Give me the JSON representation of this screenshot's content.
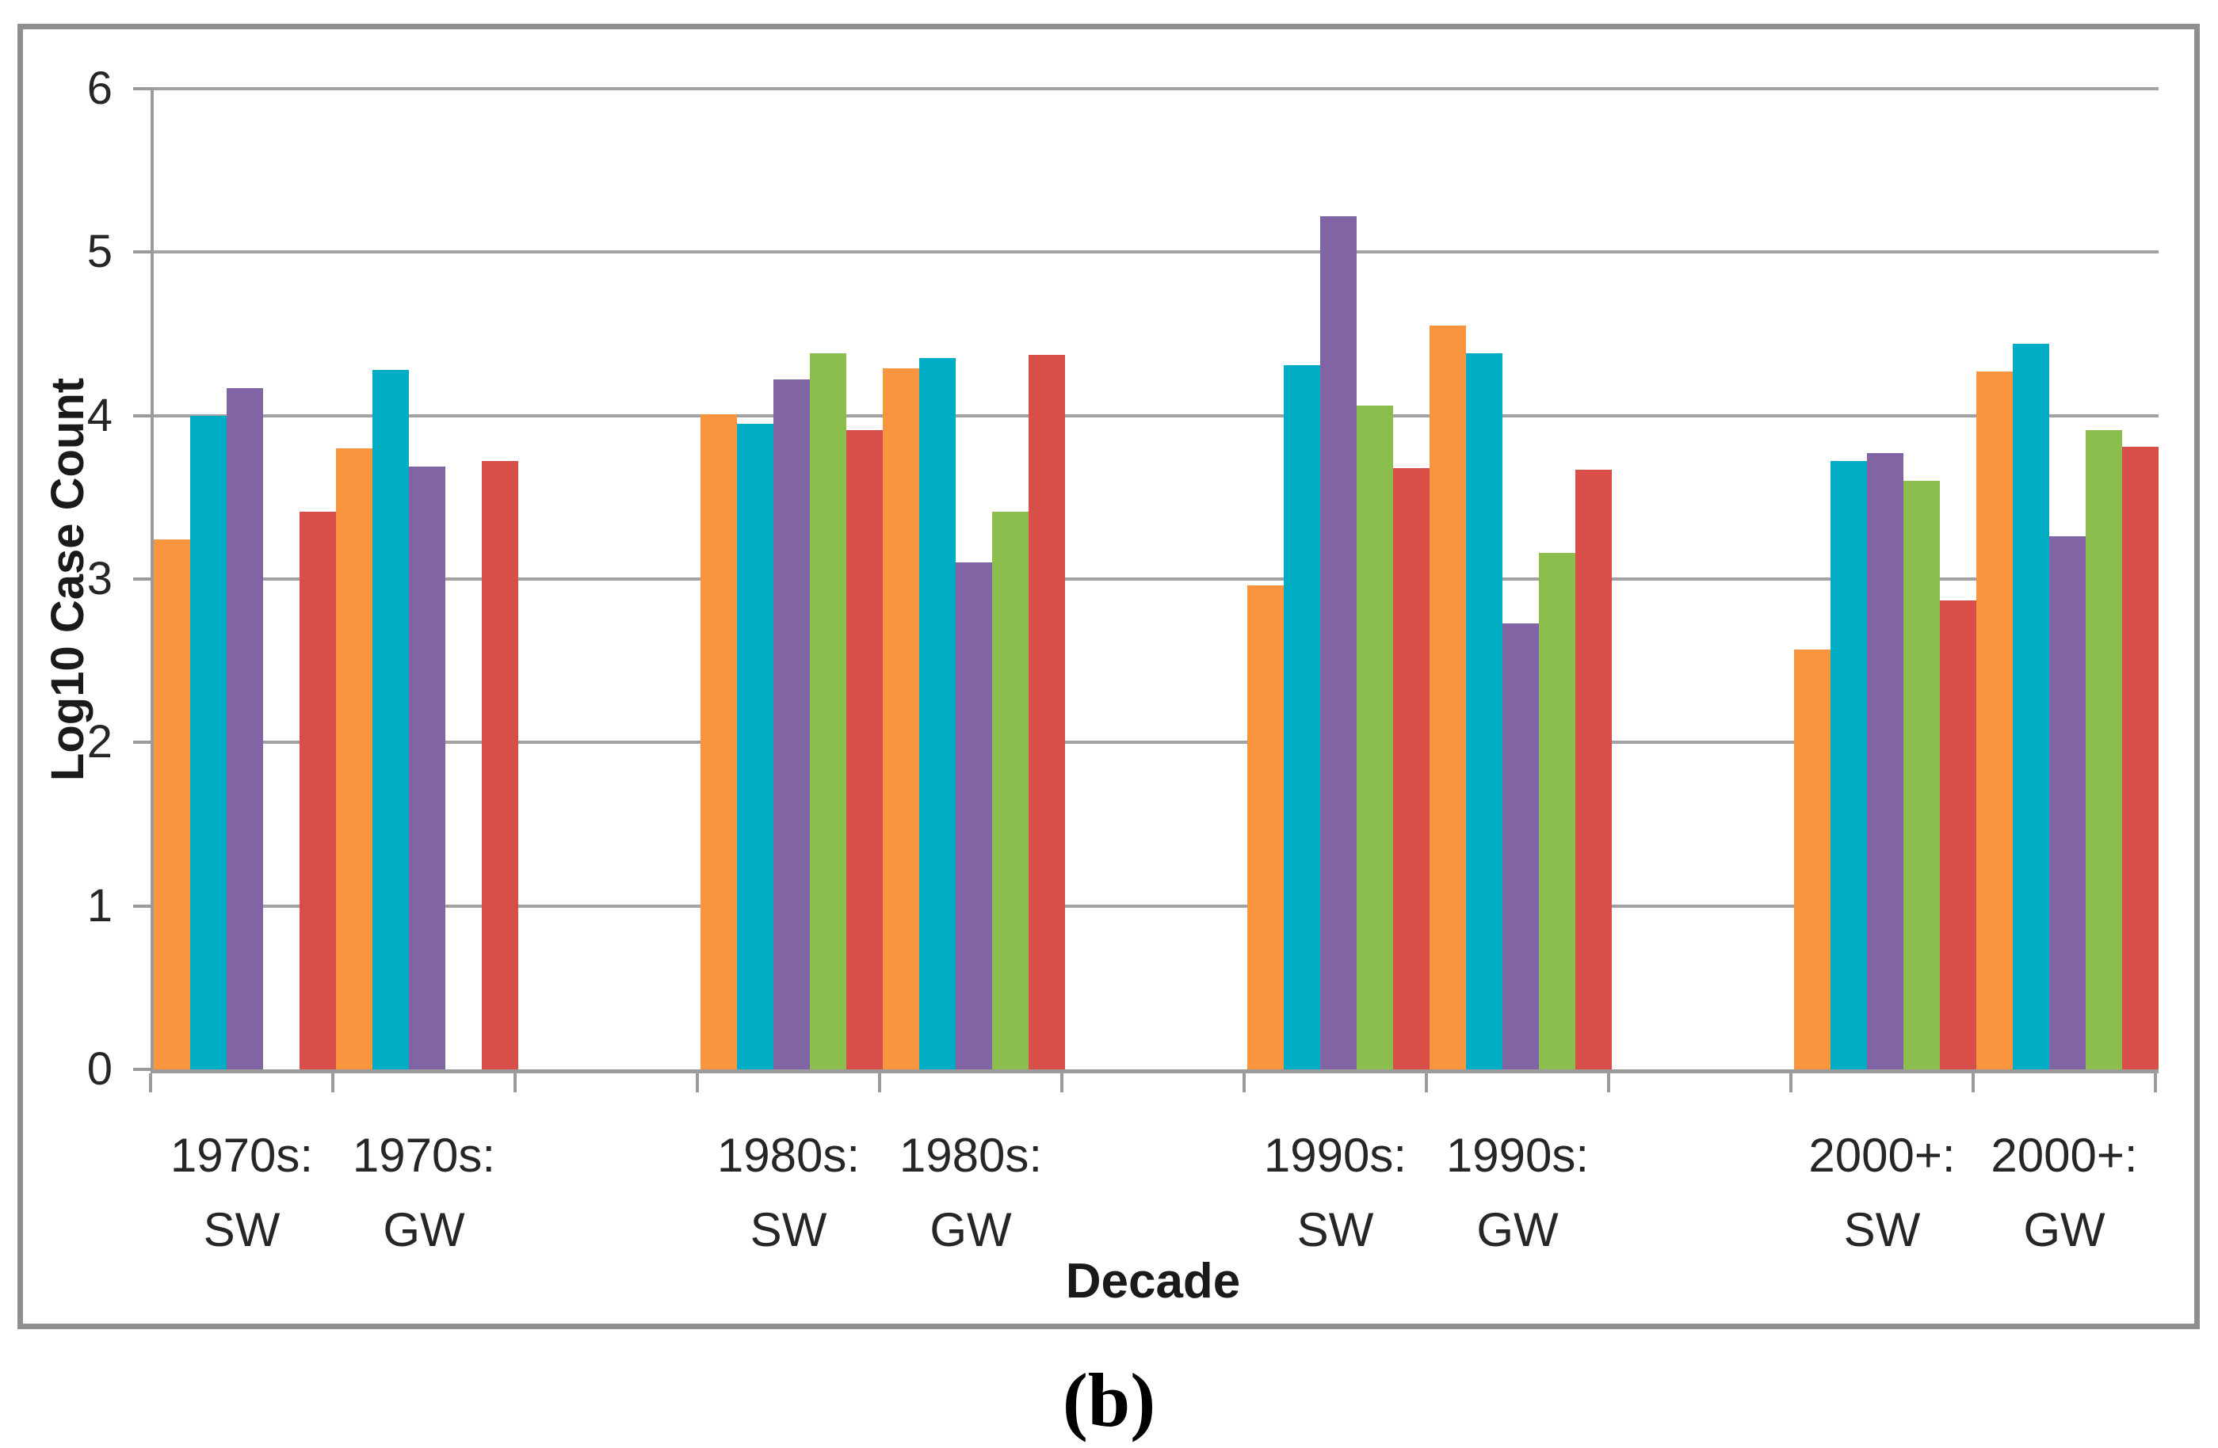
{
  "figure": {
    "caption": "(b)"
  },
  "chart_data": {
    "type": "bar",
    "title": "",
    "xlabel": "Decade",
    "ylabel": "Log10 Case Count",
    "ylim": [
      0,
      6
    ],
    "yticks": [
      0,
      1,
      2,
      3,
      4,
      5,
      6
    ],
    "grid": true,
    "legend": "none",
    "gridline_color": "#a2a2a2",
    "axis_color": "#9b9b9b",
    "categories": [
      "1970s: SW",
      "1970s: GW",
      "1980s: SW",
      "1980s: GW",
      "1990s: SW",
      "1990s: GW",
      "2000+: SW",
      "2000+: GW"
    ],
    "series": [
      {
        "name": "series-1-orange",
        "color": "#F9953F",
        "values": [
          3.24,
          3.8,
          4.01,
          4.29,
          2.96,
          4.55,
          2.57,
          4.27
        ]
      },
      {
        "name": "series-2-teal",
        "color": "#00ADC4",
        "values": [
          4.0,
          4.28,
          3.95,
          4.35,
          4.31,
          4.38,
          3.72,
          4.44
        ]
      },
      {
        "name": "series-3-purple",
        "color": "#8064A4",
        "values": [
          4.17,
          3.69,
          4.22,
          3.1,
          5.22,
          2.73,
          3.77,
          3.26
        ]
      },
      {
        "name": "series-4-green",
        "color": "#8CBE4E",
        "values": [
          0,
          0,
          4.38,
          3.41,
          4.06,
          3.16,
          3.6,
          3.91
        ]
      },
      {
        "name": "series-5-red",
        "color": "#D84F4A",
        "values": [
          3.41,
          3.72,
          3.91,
          4.37,
          3.68,
          3.67,
          2.87,
          3.81
        ]
      }
    ]
  }
}
